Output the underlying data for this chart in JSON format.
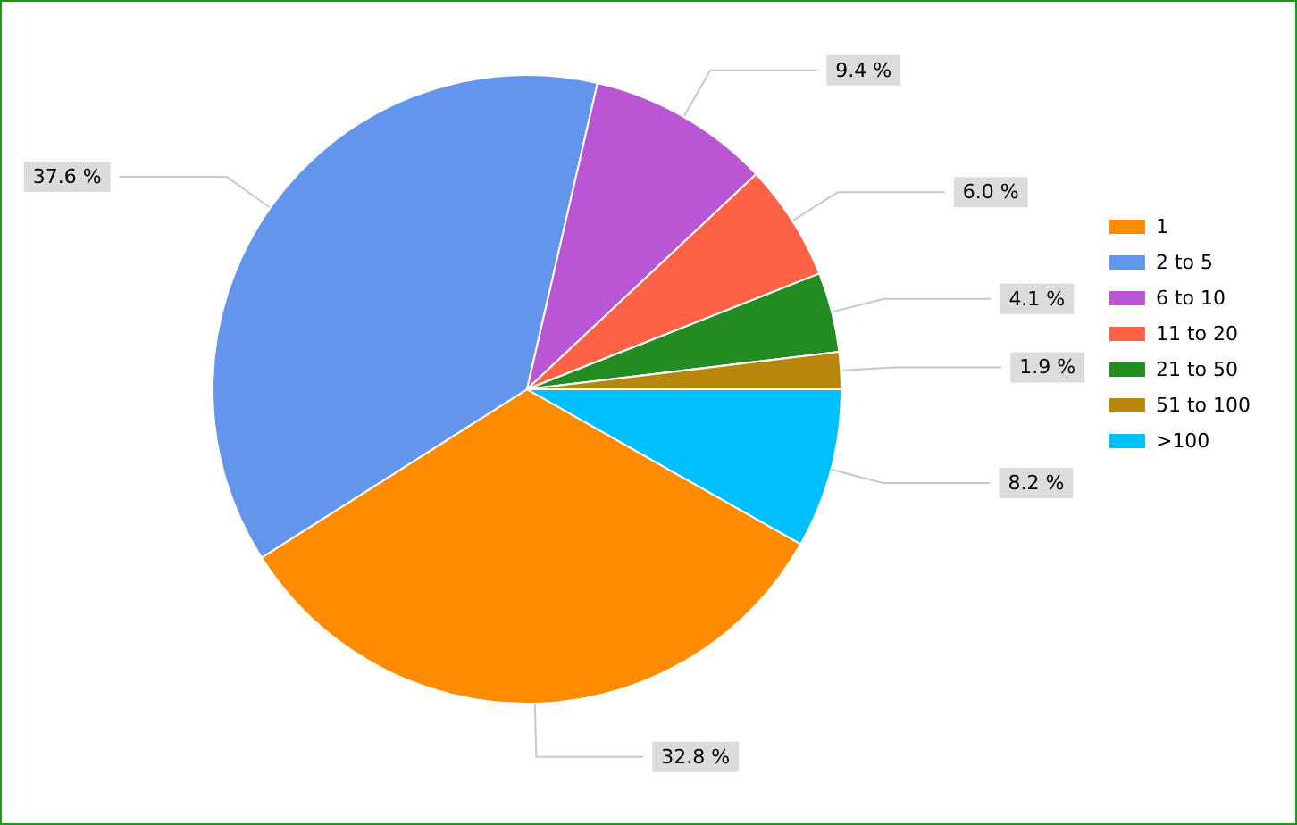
{
  "chart_data": {
    "type": "pie",
    "categories": [
      "1",
      "2 to 5",
      "6 to 10",
      "11 to 20",
      "21 to 50",
      "51 to 100",
      ">100"
    ],
    "values": [
      32.8,
      37.6,
      9.4,
      6.0,
      4.1,
      1.9,
      8.2
    ],
    "value_labels": [
      "32.8 %",
      "37.6 %",
      "9.4 %",
      "6.0 %",
      "4.1 %",
      "1.9 %",
      "8.2 %"
    ],
    "colors": [
      "#ff8c00",
      "#6495ed",
      "#ba55d3",
      "#ff6347",
      "#228b22",
      "#b8860b",
      "#00bfff"
    ],
    "legend": "right"
  }
}
